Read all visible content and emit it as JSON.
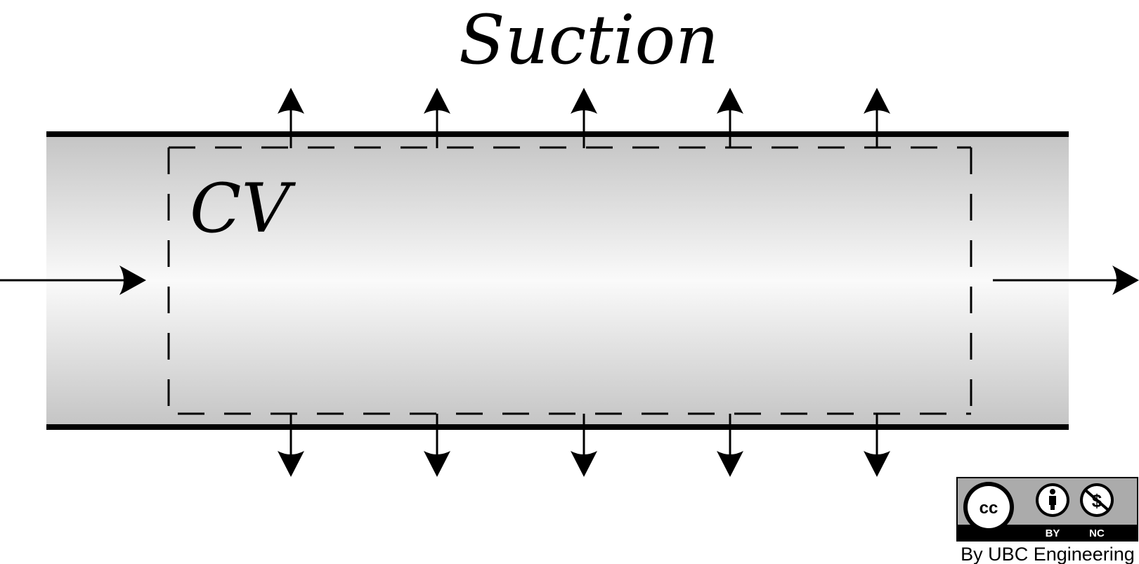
{
  "diagram": {
    "title": "Suction",
    "control_volume_label": "CV",
    "suction_arrow_count": 5
  },
  "license": {
    "badge_cc": "cc",
    "badge_by": "BY",
    "badge_nc": "NC",
    "credit": "By UBC Engineering"
  },
  "colors": {
    "pipe_wall": "#000000",
    "pipe_fill_edge": "#c4c4c4",
    "pipe_fill_center": "#fafafa",
    "arrow": "#000000",
    "badge_bg": "#000000",
    "badge_light": "#ababab"
  }
}
